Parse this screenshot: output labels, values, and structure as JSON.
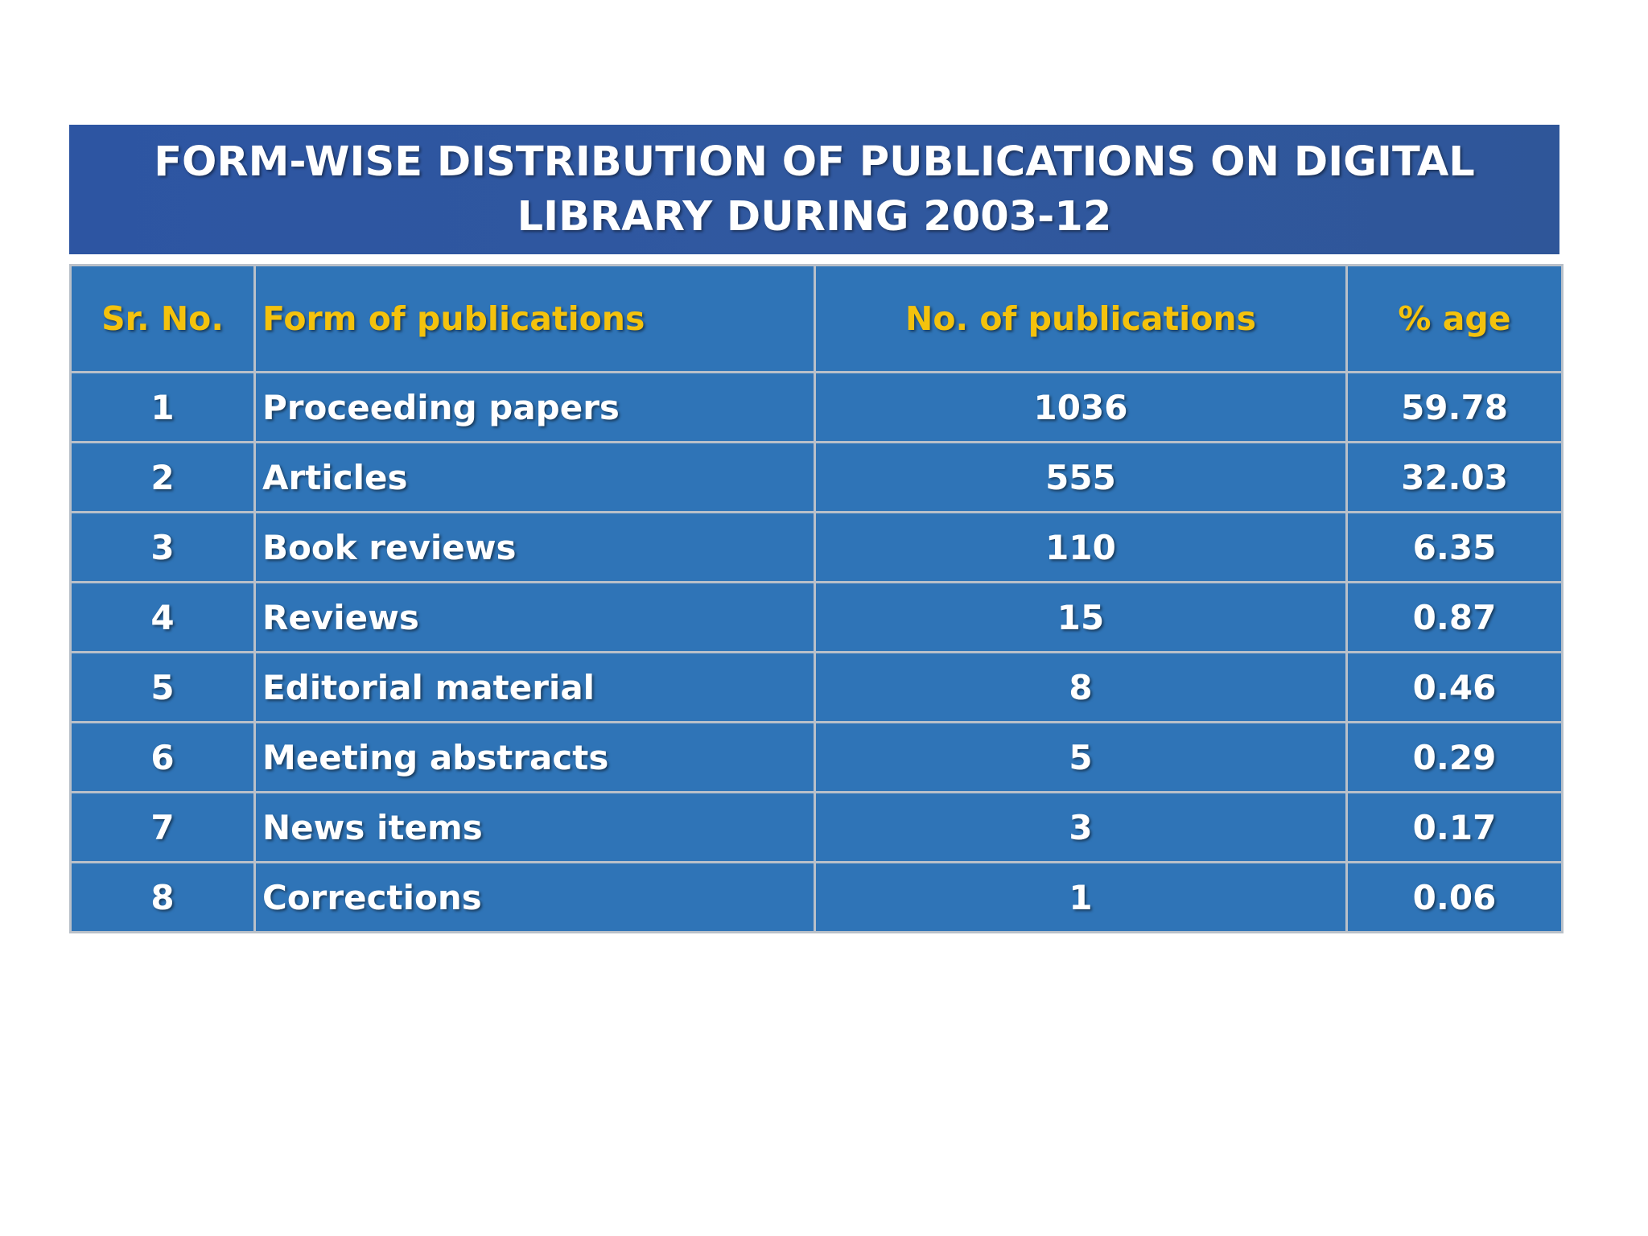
{
  "title": "FORM-WISE DISTRIBUTION OF PUBLICATIONS ON DIGITAL LIBRARY DURING 2003-12",
  "colors": {
    "banner_background": "#2f569f",
    "table_background": "#2f74b7",
    "header_text": "#f4c20d",
    "body_text": "#ffffff",
    "grid_lines": "#b9c0c9"
  },
  "table": {
    "headers": [
      "Sr. No.",
      "Form of publications",
      "No. of publications",
      "% age"
    ],
    "rows": [
      [
        "1",
        "Proceeding papers",
        "1036",
        "59.78"
      ],
      [
        "2",
        "Articles",
        "555",
        "32.03"
      ],
      [
        "3",
        "Book reviews",
        "110",
        "6.35"
      ],
      [
        "4",
        "Reviews",
        "15",
        "0.87"
      ],
      [
        "5",
        "Editorial material",
        "8",
        "0.46"
      ],
      [
        "6",
        "Meeting abstracts",
        "5",
        "0.29"
      ],
      [
        "7",
        "News items",
        "3",
        "0.17"
      ],
      [
        "8",
        "Corrections",
        "1",
        "0.06"
      ]
    ]
  }
}
